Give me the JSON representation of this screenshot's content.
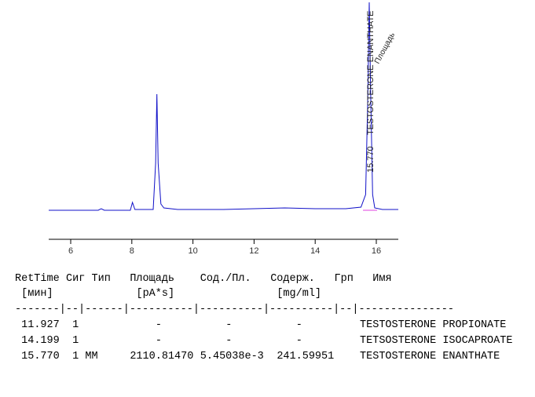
{
  "chart_data": {
    "type": "line",
    "color": "#1010c8",
    "x": [
      5.28,
      6.9,
      7.0,
      7.1,
      7.95,
      8.02,
      8.1,
      8.7,
      8.78,
      8.82,
      8.86,
      8.95,
      9.05,
      9.5,
      11,
      12,
      13,
      14,
      15,
      15.5,
      15.65,
      15.72,
      15.77,
      15.82,
      15.88,
      15.95,
      16.2,
      16.72
    ],
    "values": [
      0,
      0,
      2,
      0,
      0,
      10,
      1,
      1,
      60,
      148,
      60,
      8,
      3,
      1,
      1,
      2,
      3,
      2,
      2,
      4,
      20,
      140,
      265,
      140,
      20,
      3,
      1,
      1
    ],
    "xlim": [
      5.28,
      16.72
    ],
    "ylim": [
      0,
      268
    ],
    "xticks": [
      6,
      8,
      10,
      12,
      14,
      16
    ],
    "peak_label": {
      "x": 15.77,
      "rt": "15.770",
      "name": "TESTOSTERONE ENANTHATE",
      "area": "Площадь"
    }
  },
  "table": {
    "header": [
      "RetTime",
      "Сиг",
      "Тип",
      "Площадь",
      "Сод./Пл.",
      "Содерж.",
      "Грп",
      "Имя"
    ],
    "units": [
      "[мин]",
      "[pA*s]",
      "[mg/ml]"
    ],
    "separator": "-------|--|------|----------|----------|----------|--|---------------",
    "rows": [
      [
        "11.927",
        "1",
        null,
        "-",
        "-",
        "-",
        null,
        "TESTOSTERONE PROPIONATE"
      ],
      [
        "14.199",
        "1",
        null,
        "-",
        "-",
        "-",
        null,
        "TETSOSTERONE ISOCAPROATE"
      ],
      [
        "15.770",
        "1",
        "MM",
        "2110.81470",
        "5.45038e-3",
        "241.59951",
        null,
        "TESTOSTERONE ENANTHATE"
      ]
    ]
  }
}
